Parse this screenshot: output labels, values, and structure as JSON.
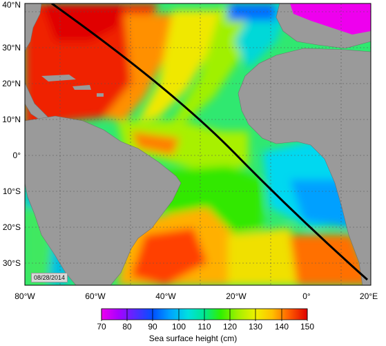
{
  "map": {
    "date": "08/28/2014",
    "lat_labels": [
      "40°N",
      "30°N",
      "20°N",
      "10°N",
      "0°",
      "10°S",
      "20°S",
      "30°S"
    ],
    "lon_labels": [
      "80°W",
      "60°W",
      "40°W",
      "20°W",
      "0°",
      "20°E"
    ],
    "colorbar": {
      "title": "Sea surface height (cm)",
      "ticks": [
        "70",
        "80",
        "90",
        "100",
        "110",
        "120",
        "130",
        "140",
        "150"
      ],
      "min": 70,
      "max": 150,
      "colors": [
        "#ee00ee",
        "#aa00ff",
        "#5a28ff",
        "#0050ff",
        "#00a0ff",
        "#00e0e0",
        "#00e890",
        "#30f000",
        "#a0f000",
        "#f0f000",
        "#ffc000",
        "#ff8000",
        "#ff3000",
        "#e00000"
      ]
    },
    "land_color": "#9a9a9a",
    "track_color": "#000000"
  }
}
